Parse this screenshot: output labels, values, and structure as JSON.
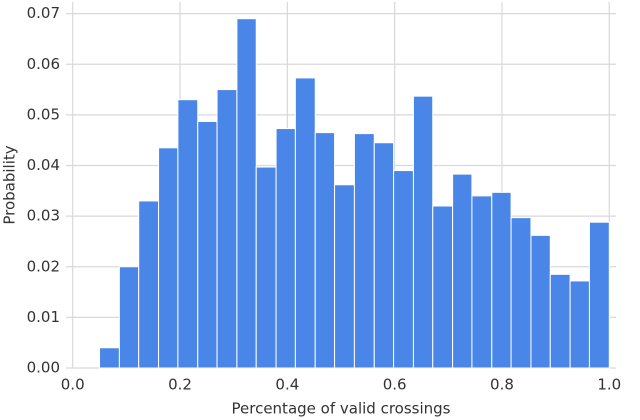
{
  "chart_data": {
    "type": "histogram",
    "x_label": "Percentage of valid crossings",
    "y_label": "Probability",
    "bins": [
      0.05,
      0.087,
      0.123,
      0.16,
      0.196,
      0.233,
      0.269,
      0.306,
      0.342,
      0.379,
      0.415,
      0.452,
      0.488,
      0.525,
      0.562,
      0.598,
      0.635,
      0.671,
      0.708,
      0.744,
      0.781,
      0.817,
      0.854,
      0.89,
      0.927,
      0.963,
      1.0
    ],
    "values": [
      0.004,
      0.02,
      0.033,
      0.0435,
      0.053,
      0.0487,
      0.055,
      0.069,
      0.0397,
      0.0473,
      0.0573,
      0.0465,
      0.0362,
      0.0463,
      0.0445,
      0.039,
      0.0537,
      0.032,
      0.0383,
      0.034,
      0.0347,
      0.0297,
      0.0262,
      0.0185,
      0.0172,
      0.0288
    ],
    "color": "#4a86e8",
    "xlim": [
      -0.0125,
      1.0125
    ],
    "ylim": [
      0,
      0.0723
    ],
    "xticks": [
      {
        "value": 0,
        "label": "0.0"
      },
      0.2,
      0.4,
      0.6,
      0.8,
      {
        "value": 1,
        "label": "1.0"
      }
    ],
    "yticks": [
      {
        "value": 0,
        "label": "0.00"
      },
      0.01,
      0.02,
      0.03,
      0.04,
      0.05,
      0.06,
      0.07
    ],
    "grid": true
  }
}
